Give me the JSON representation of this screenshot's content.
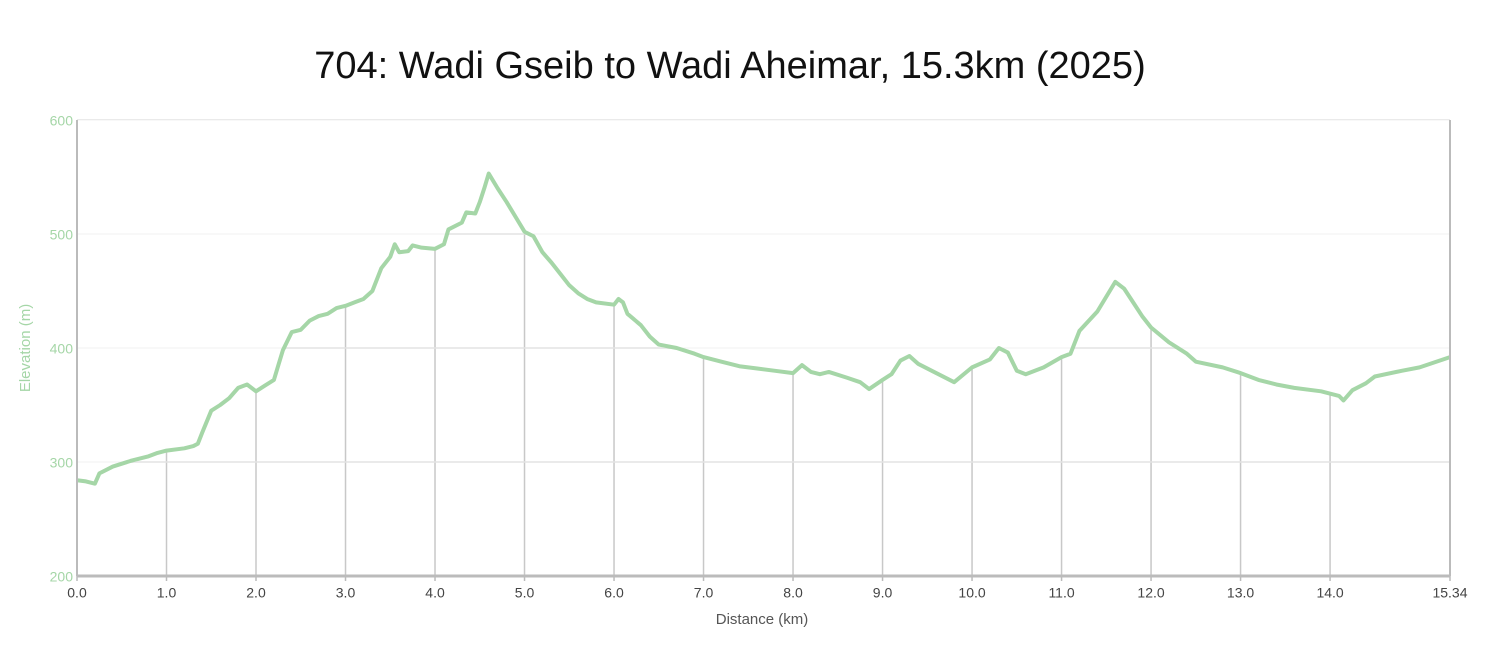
{
  "chart_data": {
    "type": "line",
    "title": "704: Wadi Gseib to Wadi Aheimar, 15.3km (2025)",
    "x_label": "Distance (km)",
    "y_label": "Elevation (m)",
    "x": [
      0.0,
      0.1,
      0.2,
      0.25,
      0.4,
      0.6,
      0.7,
      0.8,
      0.9,
      1.0,
      1.2,
      1.3,
      1.35,
      1.4,
      1.5,
      1.6,
      1.7,
      1.8,
      1.9,
      2.0,
      2.1,
      2.2,
      2.25,
      2.3,
      2.4,
      2.5,
      2.6,
      2.7,
      2.8,
      2.9,
      3.0,
      3.1,
      3.2,
      3.3,
      3.4,
      3.5,
      3.55,
      3.6,
      3.7,
      3.75,
      3.85,
      4.0,
      4.1,
      4.15,
      4.3,
      4.35,
      4.45,
      4.5,
      4.55,
      4.6,
      4.7,
      4.8,
      4.9,
      5.0,
      5.1,
      5.2,
      5.3,
      5.4,
      5.5,
      5.6,
      5.7,
      5.8,
      6.0,
      6.05,
      6.1,
      6.15,
      6.3,
      6.4,
      6.5,
      6.7,
      6.9,
      7.0,
      7.2,
      7.4,
      7.6,
      7.8,
      8.0,
      8.1,
      8.2,
      8.3,
      8.4,
      8.6,
      8.75,
      8.85,
      9.0,
      9.1,
      9.2,
      9.3,
      9.4,
      9.6,
      9.8,
      10.0,
      10.2,
      10.3,
      10.4,
      10.5,
      10.6,
      10.8,
      11.0,
      11.1,
      11.2,
      11.4,
      11.6,
      11.7,
      11.8,
      11.9,
      12.0,
      12.2,
      12.4,
      12.5,
      12.8,
      13.0,
      13.2,
      13.4,
      13.6,
      13.9,
      14.1,
      14.15,
      14.25,
      14.4,
      14.5,
      14.8,
      15.0,
      15.34
    ],
    "series": [
      {
        "name": "Elevation",
        "color": "#a5d6a7",
        "values": [
          284,
          283,
          281,
          290,
          296,
          301,
          303,
          305,
          308,
          310,
          312,
          314,
          316,
          326,
          345,
          350,
          356,
          365,
          368,
          362,
          367,
          372,
          385,
          398,
          414,
          416,
          424,
          428,
          430,
          435,
          437,
          440,
          443,
          450,
          470,
          480,
          491,
          484,
          485,
          490,
          488,
          487,
          491,
          504,
          510,
          519,
          518,
          528,
          540,
          553,
          540,
          528,
          515,
          502,
          498,
          484,
          475,
          465,
          455,
          448,
          443,
          440,
          438,
          443,
          440,
          430,
          420,
          410,
          403,
          400,
          395,
          392,
          388,
          384,
          382,
          380,
          378,
          385,
          379,
          377,
          379,
          374,
          370,
          364,
          372,
          377,
          389,
          393,
          386,
          378,
          370,
          383,
          390,
          400,
          396,
          380,
          377,
          383,
          392,
          395,
          415,
          432,
          458,
          452,
          440,
          428,
          418,
          405,
          395,
          388,
          383,
          378,
          372,
          368,
          365,
          362,
          358,
          354,
          363,
          369,
          375,
          380,
          383,
          392
        ]
      }
    ],
    "xlim": [
      0,
      15.34
    ],
    "ylim": [
      200,
      600
    ],
    "xticks": [
      {
        "value": 0,
        "label": "0.0"
      },
      {
        "value": 1,
        "label": "1.0"
      },
      {
        "value": 2,
        "label": "2.0"
      },
      {
        "value": 3,
        "label": "3.0"
      },
      {
        "value": 4,
        "label": "4.0"
      },
      {
        "value": 5,
        "label": "5.0"
      },
      {
        "value": 6,
        "label": "6.0"
      },
      {
        "value": 7,
        "label": "7.0"
      },
      {
        "value": 8,
        "label": "8.0"
      },
      {
        "value": 9,
        "label": "9.0"
      },
      {
        "value": 10,
        "label": "10.0"
      },
      {
        "value": 11,
        "label": "11.0"
      },
      {
        "value": 12,
        "label": "12.0"
      },
      {
        "value": 13,
        "label": "13.0"
      },
      {
        "value": 14,
        "label": "14.0"
      },
      15.34
    ],
    "yticks": [
      200,
      300,
      400,
      500,
      600
    ],
    "grid": true
  }
}
